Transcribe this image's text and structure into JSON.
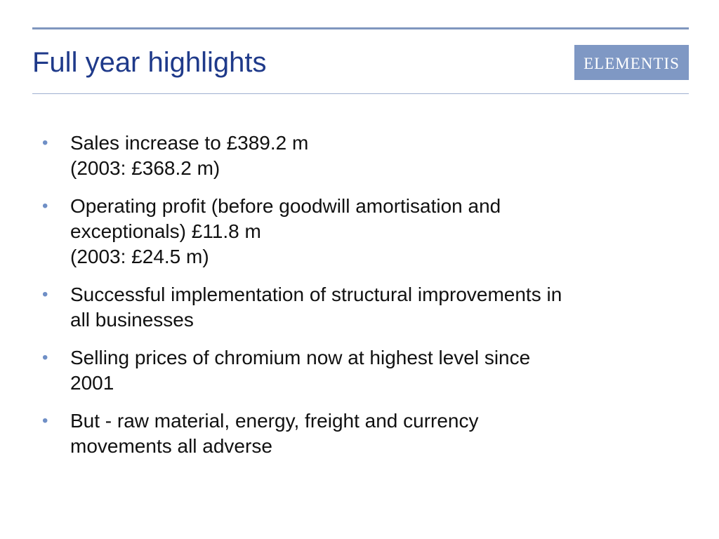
{
  "slide": {
    "title": "Full year highlights",
    "logo_text": "ELEMENTIS",
    "bullet_marker": "•",
    "bullets": [
      {
        "lines": [
          "Sales increase to £389.2 m",
          "(2003: £368.2 m)"
        ]
      },
      {
        "lines": [
          "Operating profit (before goodwill amortisation and",
          "exceptionals) £11.8 m",
          "(2003: £24.5 m)"
        ]
      },
      {
        "lines": [
          "Successful implementation of structural improvements in",
          "all businesses"
        ]
      },
      {
        "lines": [
          "Selling prices of chromium now at highest level since",
          "2001"
        ]
      },
      {
        "lines": [
          "But - raw material, energy, freight and currency",
          "movements all adverse"
        ]
      }
    ]
  },
  "colors": {
    "title": "#1f3a8a",
    "rule": "#7f96be",
    "logo_bg": "#7f98c4",
    "bullet": "#6f8fc6"
  }
}
